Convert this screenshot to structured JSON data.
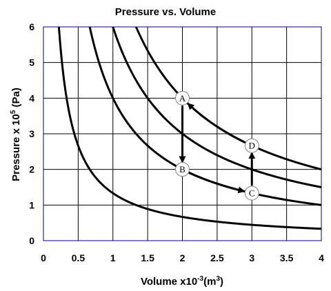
{
  "chart_data": {
    "type": "line",
    "title": "Pressure vs. Volume",
    "xlabel": "Volume x10",
    "xlabel_sup": "-3",
    "xlabel_end": "(m",
    "xlabel_sup2": "3",
    "xlabel_close": ")",
    "ylabel": "Pressure x 10",
    "ylabel_sup": "5",
    "ylabel_end": " (Pa)",
    "xlim": [
      0,
      4
    ],
    "ylim": [
      0,
      6
    ],
    "xticks": [
      0,
      0.5,
      1,
      1.5,
      2,
      2.5,
      3,
      3.5,
      4
    ],
    "yticks": [
      0,
      1,
      2,
      3,
      4,
      5,
      6
    ],
    "xtick_labels": [
      "0",
      "0.5",
      "1",
      "1.5",
      "2",
      "2.5",
      "3",
      "3.5",
      "4"
    ],
    "ytick_labels": [
      "0",
      "1",
      "2",
      "3",
      "4",
      "5",
      "6"
    ],
    "grid": true,
    "isotherms": [
      {
        "PV": 1.333
      },
      {
        "PV": 4
      },
      {
        "PV": 6
      },
      {
        "PV": 8
      }
    ],
    "points": [
      {
        "label": "A",
        "x": 2,
        "y": 4
      },
      {
        "label": "B",
        "x": 2,
        "y": 2
      },
      {
        "label": "C",
        "x": 3,
        "y": 1.333
      },
      {
        "label": "D",
        "x": 3,
        "y": 2.667
      }
    ],
    "arrows": [
      {
        "from": "A",
        "to": "B",
        "path": "straight"
      },
      {
        "from": "B",
        "to": "C",
        "path": "isotherm"
      },
      {
        "from": "C",
        "to": "D",
        "path": "straight"
      },
      {
        "from": "D",
        "to": "A",
        "path": "isotherm"
      }
    ],
    "colors": {
      "line": "#000000",
      "grid": "#000000",
      "border": "#000080",
      "marker_fill": "#ffffff"
    }
  }
}
